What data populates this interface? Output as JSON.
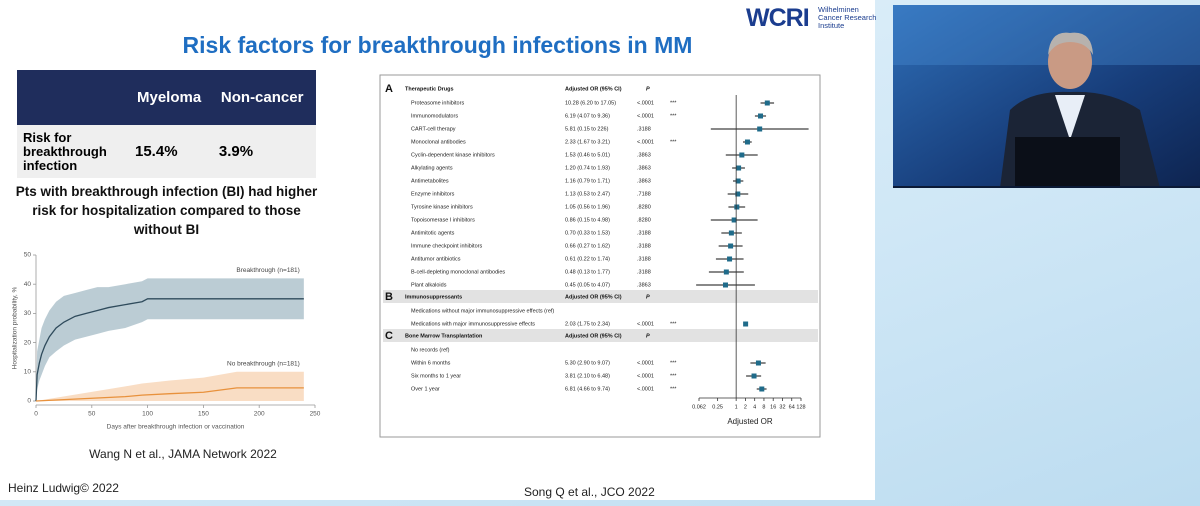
{
  "slide": {
    "title": "Risk factors for breakthrough infections in MM",
    "logo": {
      "mark": "WCRI",
      "name": "Wilhelminen Cancer Research Institute"
    },
    "footer_left": "Heinz Ludwig© 2022",
    "footer_right": "Song Q et al., JCO 2022"
  },
  "table": {
    "columns": [
      "Myeloma",
      "Non-cancer"
    ],
    "rows": [
      {
        "label": "Risk for breakthrough infection",
        "cells": [
          "15.4%",
          "3.9%"
        ]
      }
    ]
  },
  "statement": "Pts with breakthrough infection (BI) had higher risk for hospitalization compared to those without BI",
  "chart_data": [
    {
      "type": "line",
      "citation": "Wang N et al., JAMA Network 2022",
      "xlabel": "Days after breakthrough infection or vaccination",
      "ylabel": "Hospitalization probability, %",
      "xlim": [
        0,
        250
      ],
      "ylim": [
        0,
        50
      ],
      "xticks": [
        0,
        50,
        100,
        150,
        200,
        250
      ],
      "yticks": [
        0,
        10,
        20,
        30,
        40,
        50
      ],
      "series": [
        {
          "name": "Breakthrough (n=181)",
          "color": "#2f4b5c",
          "band_color": "#8eaab8",
          "x": [
            0,
            1,
            3,
            5,
            8,
            12,
            18,
            25,
            35,
            45,
            55,
            65,
            80,
            95,
            100,
            120,
            140,
            160,
            180,
            200,
            240
          ],
          "values": [
            0,
            9,
            13,
            16,
            19,
            22,
            25,
            27,
            29,
            30,
            31,
            32,
            33,
            34,
            35,
            35,
            35,
            35,
            35,
            35,
            35
          ],
          "upper": [
            0,
            17,
            21,
            25,
            28,
            31,
            34,
            36,
            37,
            38,
            39,
            39,
            40,
            41,
            42,
            42,
            42,
            42,
            42,
            42,
            42
          ],
          "lower": [
            0,
            4,
            7,
            9,
            12,
            15,
            17,
            19,
            21,
            22,
            23,
            24,
            25,
            27,
            28,
            28,
            28,
            28,
            28,
            28,
            28
          ]
        },
        {
          "name": "No breakthrough (n=181)",
          "color": "#e8913c",
          "band_color": "#f5c79c",
          "x": [
            0,
            80,
            95,
            120,
            150,
            180,
            240
          ],
          "values": [
            0,
            1.5,
            2,
            2.5,
            3,
            4.5,
            4.5
          ],
          "upper": [
            0,
            5,
            6,
            7,
            8,
            10,
            10
          ],
          "lower": [
            0,
            0,
            0,
            0,
            0,
            0,
            0
          ]
        }
      ]
    },
    {
      "type": "forest",
      "xlabel": "Adjusted OR",
      "log": true,
      "color": "#1f6b8a",
      "xlim": [
        0.062,
        128
      ],
      "xticks": [
        0.062,
        0.25,
        1,
        2,
        4,
        8,
        16,
        32,
        64,
        128
      ],
      "sections": [
        {
          "letter": "A",
          "title": "Therapeutic Drugs",
          "or_header": "Adjusted OR (95% CI)",
          "p_header": "P",
          "categories": [
            "Proteasome inhibitors",
            "Immunomodulators",
            "CART-cell therapy",
            "Monoclonal antibodies",
            "Cyclin-dependent kinase inhibitors",
            "Alkylating agents",
            "Antimetabolites",
            "Enzyme inhibitors",
            "Tyrosine kinase inhibitors",
            "Topoisomerase I inhibitors",
            "Antimitotic agents",
            "Immune checkpoint inhibitors",
            "Antitumor antibiotics",
            "B-cell-depleting monoclonal antibodies",
            "Plant alkaloids"
          ],
          "value_labels": [
            "10.28 (6.20 to 17.05)",
            "6.19 (4.07 to 9.36)",
            "5.81 (0.15 to 226)",
            "2.33 (1.67 to 3.21)",
            "1.53 (0.46 to 5.01)",
            "1.20 (0.74 to 1.93)",
            "1.16 (0.79 to 1.71)",
            "1.13 (0.53 to 2.47)",
            "1.05 (0.56 to 1.96)",
            "0.86 (0.15 to 4.98)",
            "0.70 (0.33 to 1.53)",
            "0.66 (0.27 to 1.62)",
            "0.61 (0.22 to 1.74)",
            "0.48 (0.13 to 1.77)",
            "0.45 (0.05 to 4.07)"
          ],
          "p": [
            "<.0001",
            "<.0001",
            ".3188",
            "<.0001",
            ".3863",
            ".3863",
            ".3863",
            ".7188",
            ".8280",
            ".8280",
            ".3188",
            ".3188",
            ".3188",
            ".3188",
            ".3863"
          ],
          "sig": [
            "***",
            "***",
            null,
            "***",
            null,
            null,
            null,
            null,
            null,
            null,
            null,
            null,
            null,
            null,
            null
          ],
          "values": [
            10.28,
            6.19,
            5.81,
            2.33,
            1.53,
            1.2,
            1.16,
            1.13,
            1.05,
            0.86,
            0.7,
            0.66,
            0.61,
            0.48,
            0.45
          ],
          "lower": [
            6.2,
            4.07,
            0.15,
            1.67,
            0.46,
            0.74,
            0.79,
            0.53,
            0.56,
            0.15,
            0.33,
            0.27,
            0.22,
            0.13,
            0.05
          ],
          "upper": [
            17.05,
            9.36,
            226,
            3.21,
            5.01,
            1.93,
            1.71,
            2.47,
            1.96,
            4.98,
            1.53,
            1.62,
            1.74,
            1.77,
            4.07
          ]
        },
        {
          "letter": "B",
          "title": "Immunosuppressants",
          "or_header": "Adjusted OR (95% CI)",
          "p_header": "P",
          "categories": [
            "Medications without major immunosuppressive effects (ref)",
            "Medications with major immunosuppressive effects"
          ],
          "value_labels": [
            null,
            "2.03 (1.75 to 2.34)"
          ],
          "p": [
            null,
            "<.0001"
          ],
          "sig": [
            null,
            "***"
          ],
          "values": [
            null,
            2.03
          ],
          "lower": [
            null,
            1.75
          ],
          "upper": [
            null,
            2.34
          ]
        },
        {
          "letter": "C",
          "title": "Bone Marrow Transplantation",
          "or_header": "Adjusted OR (95% CI)",
          "p_header": "P",
          "categories": [
            "No records (ref)",
            "Within 6 months",
            "Six months to 1 year",
            "Over 1 year"
          ],
          "value_labels": [
            null,
            "5.30 (2.90 to 9.07)",
            "3.81 (2.10 to 6.48)",
            "6.81 (4.66 to 9.74)"
          ],
          "p": [
            null,
            "<.0001",
            "<.0001",
            "<.0001"
          ],
          "sig": [
            null,
            "***",
            "***",
            "***"
          ],
          "values": [
            null,
            5.3,
            3.81,
            6.81
          ],
          "lower": [
            null,
            2.9,
            2.1,
            4.66
          ],
          "upper": [
            null,
            9.07,
            6.48,
            9.74
          ]
        }
      ]
    }
  ]
}
